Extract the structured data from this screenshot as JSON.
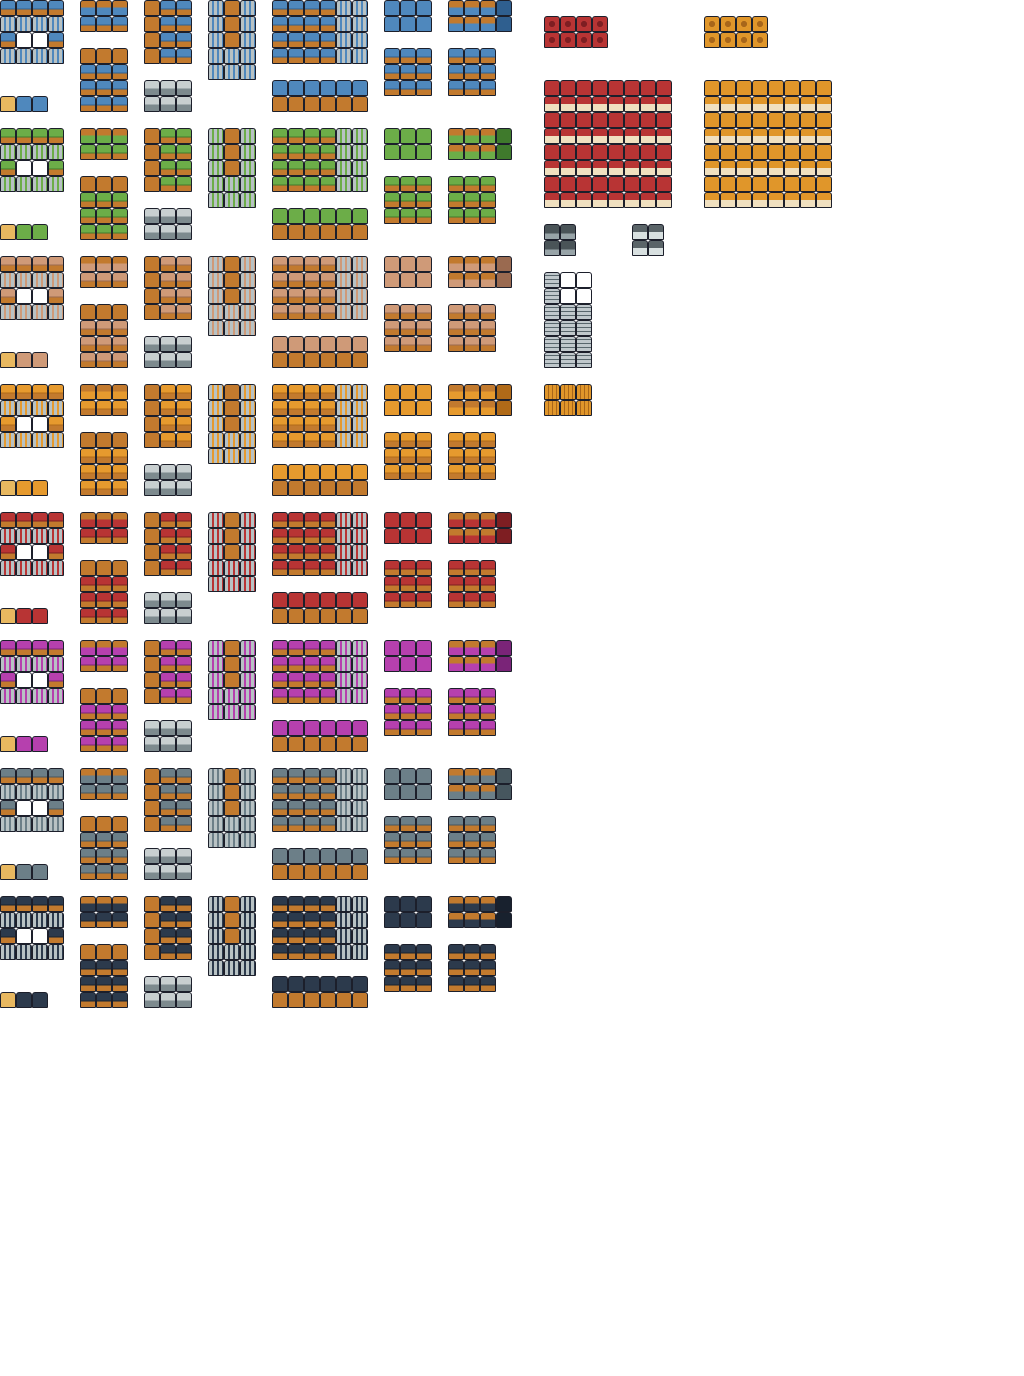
{
  "sheet": {
    "variants": [
      {
        "name": "blue",
        "roof": "#4f88bd",
        "roof_dark": "#2f5f8f"
      },
      {
        "name": "green",
        "roof": "#6cad48",
        "roof_dark": "#3f7a2c"
      },
      {
        "name": "tan",
        "roof": "#cf9a78",
        "roof_dark": "#9a6a50"
      },
      {
        "name": "orange",
        "roof": "#e69a2e",
        "roof_dark": "#b06a18"
      },
      {
        "name": "red",
        "roof": "#b83434",
        "roof_dark": "#7e1e22"
      },
      {
        "name": "magenta",
        "roof": "#b640ae",
        "roof_dark": "#7a2478"
      },
      {
        "name": "gray",
        "roof": "#6c7f88",
        "roof_dark": "#46565e"
      },
      {
        "name": "navy",
        "roof": "#2c3a4c",
        "roof_dark": "#18212e"
      }
    ],
    "wall_color": "#c27a2e",
    "stone_color": "#b8c2c4",
    "outline_color": "#1c1f2b",
    "dome_sets": [
      {
        "name": "red-dome",
        "roof": "#b83434",
        "roof_dark": "#7e1e22"
      },
      {
        "name": "orange-dome",
        "roof": "#e0962a",
        "roof_dark": "#a8661a"
      }
    ]
  }
}
